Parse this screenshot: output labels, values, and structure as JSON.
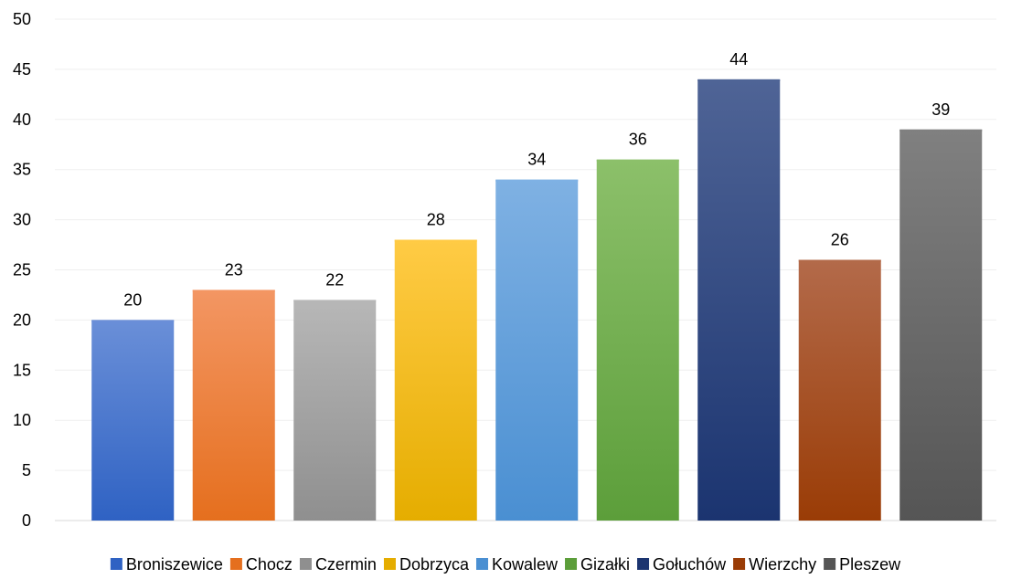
{
  "chart_data": {
    "type": "bar",
    "title": "",
    "xlabel": "",
    "ylabel": "",
    "ylim": [
      0,
      50
    ],
    "yticks": [
      0,
      5,
      10,
      15,
      20,
      25,
      30,
      35,
      40,
      45,
      50
    ],
    "grid": true,
    "legend_position": "bottom",
    "categories": [
      "Broniszewice",
      "Chocz",
      "Czermin",
      "Dobrzyca",
      "Kowalew",
      "Gizałki",
      "Gołuchów",
      "Wierzchy",
      "Pleszew"
    ],
    "values": [
      20,
      23,
      22,
      28,
      34,
      36,
      44,
      26,
      39
    ],
    "colors": [
      {
        "light": "#6a8fd8",
        "dark": "#2f62c3"
      },
      {
        "light": "#f39663",
        "dark": "#e56f1e"
      },
      {
        "light": "#b7b7b7",
        "dark": "#8f8f8f"
      },
      {
        "light": "#ffcb45",
        "dark": "#e5ad00"
      },
      {
        "light": "#7fb1e3",
        "dark": "#4a8fd2"
      },
      {
        "light": "#8cc06a",
        "dark": "#5c9e3a"
      },
      {
        "light": "#4f6496",
        "dark": "#1b3470"
      },
      {
        "light": "#b36a4a",
        "dark": "#9a3c06"
      },
      {
        "light": "#808080",
        "dark": "#555555"
      }
    ]
  }
}
